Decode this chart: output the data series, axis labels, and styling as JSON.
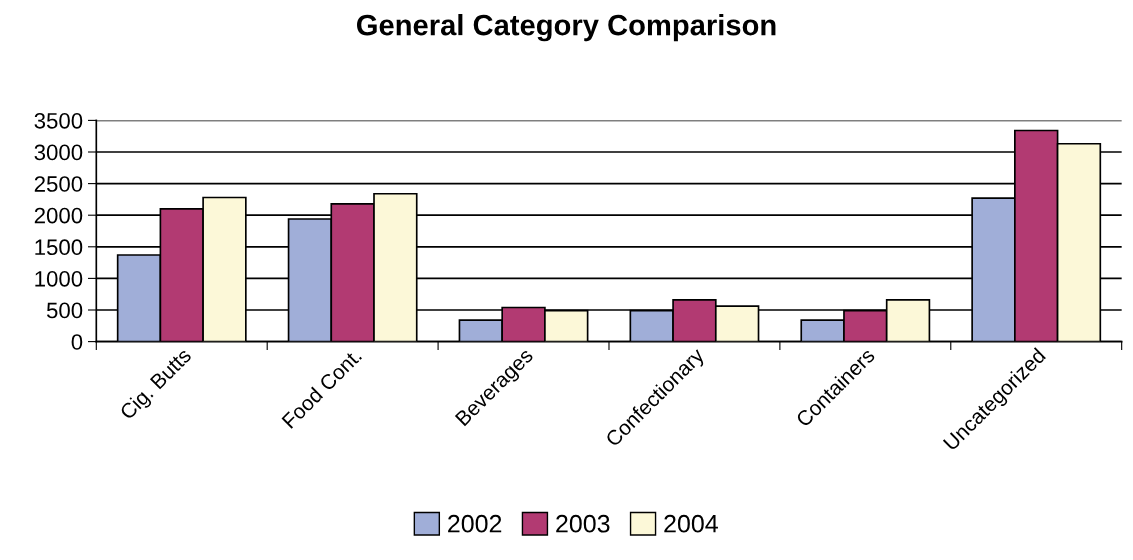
{
  "chart_data": {
    "type": "bar",
    "title": "General Category Comparison",
    "categories": [
      "Cig. Butts",
      "Food Cont.",
      "Beverages",
      "Confectionary",
      "Containers",
      "Uncategorized"
    ],
    "series": [
      {
        "name": "2002",
        "color": "#a0aed8",
        "values": [
          1370,
          1940,
          340,
          490,
          340,
          2270
        ]
      },
      {
        "name": "2003",
        "color": "#b23a72",
        "values": [
          2100,
          2180,
          540,
          660,
          490,
          3340
        ]
      },
      {
        "name": "2004",
        "color": "#fcf8d8",
        "values": [
          2280,
          2340,
          490,
          560,
          660,
          3130
        ]
      }
    ],
    "ylim": [
      0,
      3500
    ],
    "yticks": [
      0,
      500,
      1000,
      1500,
      2000,
      2500,
      3000,
      3500
    ],
    "grid": "y",
    "legend": "bottom"
  }
}
